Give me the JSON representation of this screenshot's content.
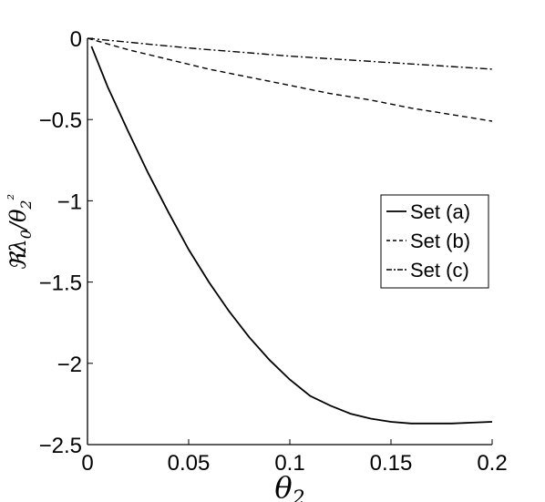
{
  "chart_data": {
    "type": "line",
    "title": "",
    "xlabel": "θ2",
    "ylabel": "ℜλ0/θ2²",
    "xlim": [
      0,
      0.2
    ],
    "ylim": [
      -2.5,
      0
    ],
    "xticks": [
      0,
      0.05,
      0.1,
      0.15,
      0.2
    ],
    "xtick_labels": [
      "0",
      "0.05",
      "0.1",
      "0.15",
      "0.2"
    ],
    "yticks": [
      0,
      -0.5,
      -1,
      -1.5,
      -2,
      -2.5
    ],
    "ytick_labels": [
      "0",
      "−0.5",
      "−1",
      "−1.5",
      "−2",
      "−2.5"
    ],
    "grid": false,
    "legend_position": "right",
    "series": [
      {
        "name": "Set (a)",
        "style": "solid",
        "x": [
          0.002,
          0.01,
          0.02,
          0.03,
          0.04,
          0.05,
          0.06,
          0.07,
          0.08,
          0.09,
          0.1,
          0.11,
          0.12,
          0.13,
          0.14,
          0.15,
          0.16,
          0.17,
          0.18,
          0.19,
          0.2
        ],
        "y": [
          -0.05,
          -0.3,
          -0.57,
          -0.83,
          -1.07,
          -1.3,
          -1.5,
          -1.68,
          -1.84,
          -1.98,
          -2.1,
          -2.2,
          -2.26,
          -2.31,
          -2.34,
          -2.36,
          -2.37,
          -2.37,
          -2.37,
          -2.365,
          -2.36
        ]
      },
      {
        "name": "Set (b)",
        "style": "dashed",
        "x": [
          0,
          0.02,
          0.04,
          0.06,
          0.08,
          0.1,
          0.12,
          0.14,
          0.16,
          0.18,
          0.2
        ],
        "y": [
          0,
          -0.07,
          -0.13,
          -0.19,
          -0.24,
          -0.29,
          -0.34,
          -0.38,
          -0.43,
          -0.47,
          -0.51
        ]
      },
      {
        "name": "Set (c)",
        "style": "dashdot",
        "x": [
          0,
          0.05,
          0.1,
          0.15,
          0.2
        ],
        "y": [
          0,
          -0.06,
          -0.11,
          -0.15,
          -0.19
        ]
      }
    ]
  }
}
